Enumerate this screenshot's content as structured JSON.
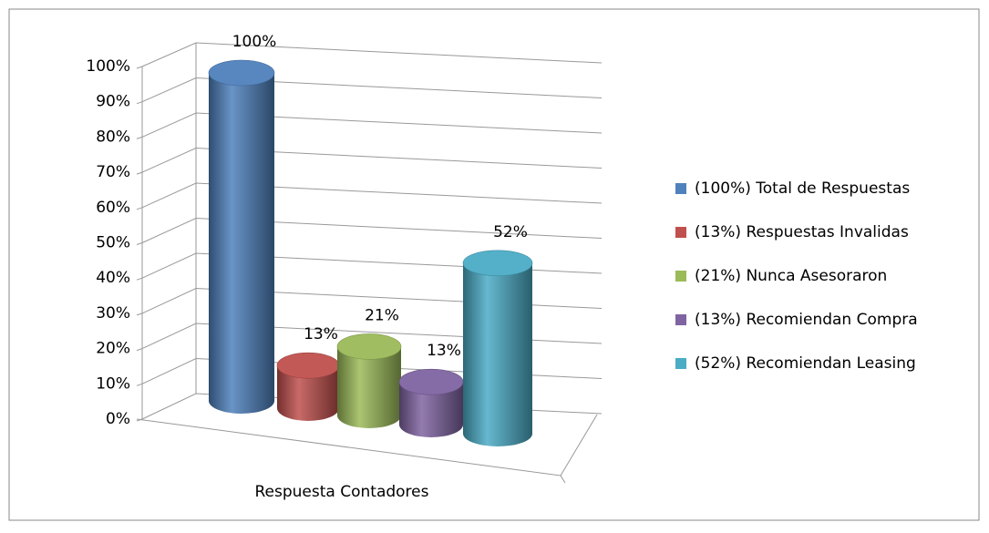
{
  "chart_data": {
    "type": "bar3d",
    "categories": [
      "Respuesta Contadores"
    ],
    "ylim": [
      0,
      100
    ],
    "yticks": [
      {
        "value": 0,
        "label": "0%"
      },
      {
        "value": 10,
        "label": "10%"
      },
      {
        "value": 20,
        "label": "20%"
      },
      {
        "value": 30,
        "label": "30%"
      },
      {
        "value": 40,
        "label": "40%"
      },
      {
        "value": 50,
        "label": "50%"
      },
      {
        "value": 60,
        "label": "60%"
      },
      {
        "value": 70,
        "label": "70%"
      },
      {
        "value": 80,
        "label": "80%"
      },
      {
        "value": 90,
        "label": "90%"
      },
      {
        "value": 100,
        "label": "100%"
      }
    ],
    "grid": true,
    "legend": "right",
    "series": [
      {
        "name": "(100%) Total de Respuestas",
        "color": "#4f81bd",
        "values": [
          100
        ],
        "value_labels": [
          "100%"
        ]
      },
      {
        "name": "(13%) Respuestas Invalidas",
        "color": "#c0504d",
        "values": [
          13
        ],
        "value_labels": [
          "13%"
        ]
      },
      {
        "name": "(21%) Nunca Asesoraron",
        "color": "#9bbb59",
        "values": [
          21
        ],
        "value_labels": [
          "21%"
        ]
      },
      {
        "name": "(13%) Recomiendan Compra",
        "color": "#8064a2",
        "values": [
          13
        ],
        "value_labels": [
          "13%"
        ]
      },
      {
        "name": "(52%) Recomiendan Leasing",
        "color": "#4bacc6",
        "values": [
          52
        ],
        "value_labels": [
          "52%"
        ]
      }
    ]
  }
}
